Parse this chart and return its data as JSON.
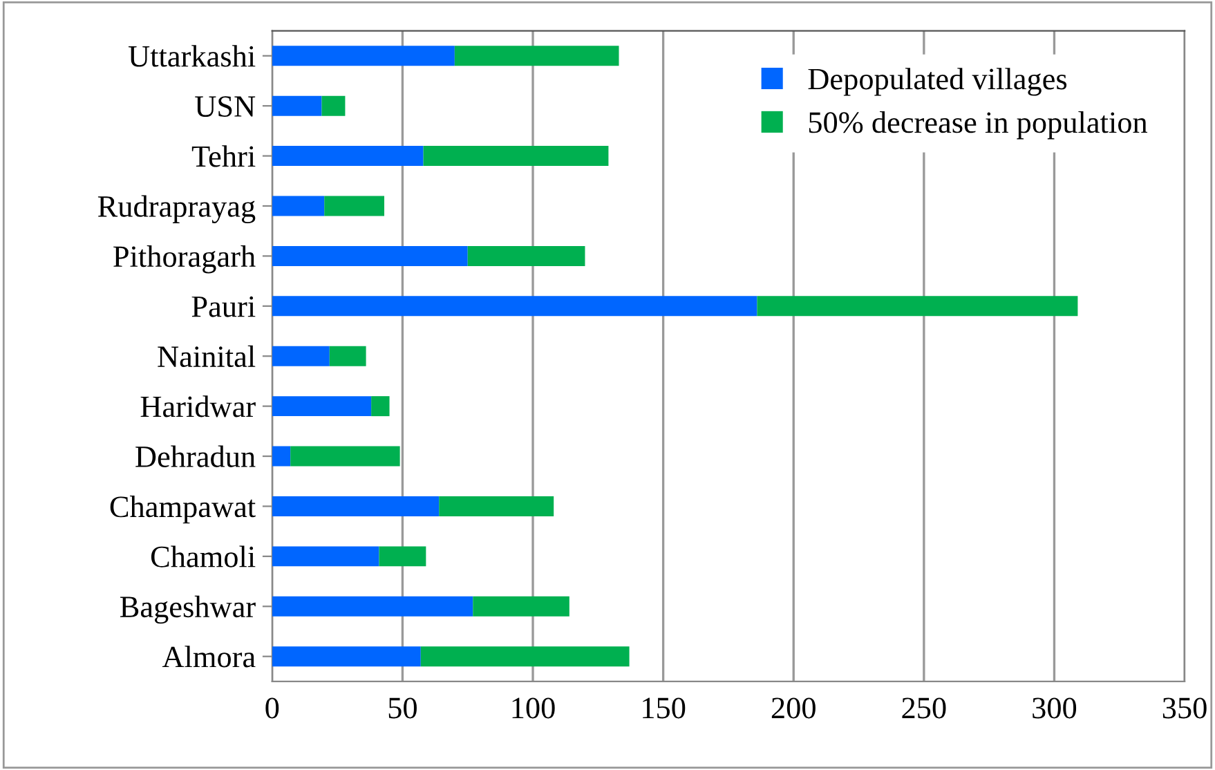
{
  "chart_data": {
    "type": "bar",
    "orientation": "horizontal",
    "stacked": true,
    "categories": [
      "Uttarkashi",
      "USN",
      "Tehri",
      "Rudraprayag",
      "Pithoragarh",
      "Pauri",
      "Nainital",
      "Haridwar",
      "Dehradun",
      "Champawat",
      "Chamoli",
      "Bageshwar",
      "Almora"
    ],
    "series": [
      {
        "name": "Depopulated villages",
        "color": "#0066ff",
        "values": [
          70,
          19,
          58,
          20,
          75,
          186,
          22,
          38,
          7,
          64,
          41,
          77,
          57
        ]
      },
      {
        "name": "50% decrease in population",
        "color": "#00b050",
        "values": [
          63,
          9,
          71,
          23,
          45,
          123,
          14,
          7,
          42,
          44,
          18,
          37,
          80
        ]
      }
    ],
    "xlim": [
      0,
      350
    ],
    "xticks": [
      0,
      50,
      100,
      150,
      200,
      250,
      300,
      350
    ],
    "grid": "x",
    "legend": "top right"
  }
}
